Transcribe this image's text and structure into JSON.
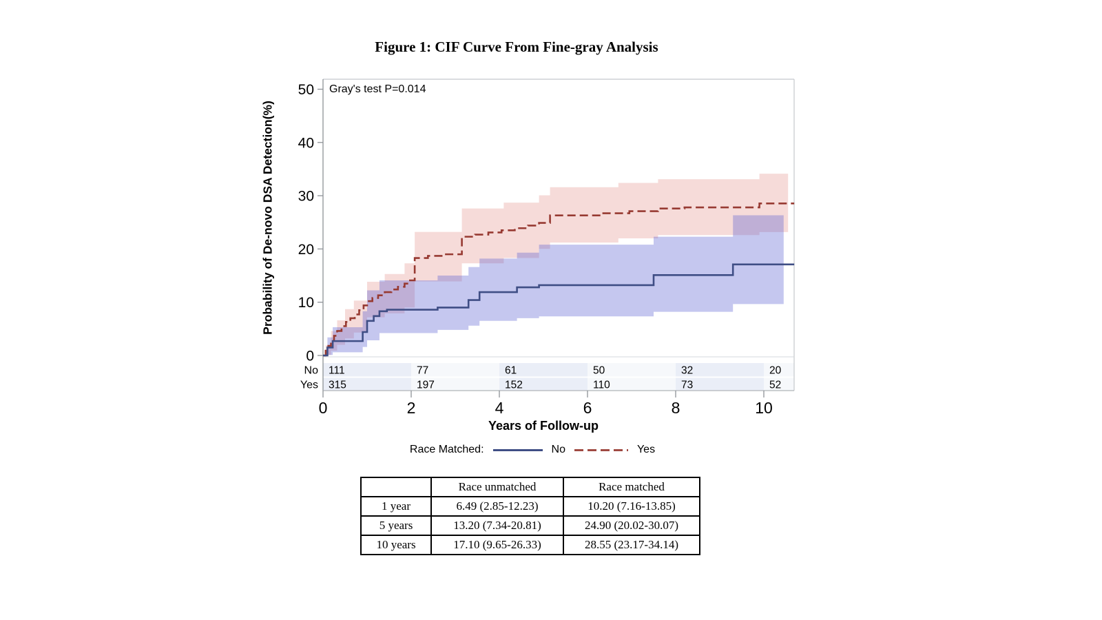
{
  "chart_data": {
    "type": "line",
    "subtype": "step-cumulative-incidence",
    "title": "Figure 1: CIF Curve From Fine-gray Analysis",
    "annotation": "Gray's test P=0.014",
    "xlabel": "Years of Follow-up",
    "ylabel": "Probability of De-novo DSA Detection(%)",
    "xlim": [
      0,
      10.69
    ],
    "ylim": [
      0,
      50
    ],
    "xticks": [
      0,
      2,
      4,
      6,
      8,
      10
    ],
    "yticks": [
      0,
      10,
      20,
      30,
      40,
      50
    ],
    "grid": false,
    "legend": {
      "label": "Race Matched:",
      "position": "bottom",
      "entries": [
        {
          "name": "No",
          "style": "solid",
          "color": "#3f4e85"
        },
        {
          "name": "Yes",
          "style": "dashed",
          "color": "#973a32"
        }
      ]
    },
    "series": [
      {
        "name": "No",
        "color": "#3f4e85",
        "line_style": "solid",
        "band_fill": "rgba(90,95,208,0.35)",
        "end_x": 10.69,
        "band_end_x": 10.45,
        "steps": [
          [
            0,
            0
          ],
          [
            0.1,
            1.5
          ],
          [
            0.22,
            2.7
          ],
          [
            0.9,
            4.4
          ],
          [
            1.0,
            6.49
          ],
          [
            1.15,
            7.4
          ],
          [
            1.28,
            8.3
          ],
          [
            1.45,
            8.6
          ],
          [
            2.6,
            9.0
          ],
          [
            3.3,
            10.4
          ],
          [
            3.55,
            11.9
          ],
          [
            4.4,
            12.8
          ],
          [
            4.9,
            13.2
          ],
          [
            7.5,
            15.1
          ],
          [
            9.3,
            17.1
          ]
        ],
        "band": [
          [
            0,
            0,
            0
          ],
          [
            0.1,
            0.1,
            3.4
          ],
          [
            0.22,
            0.6,
            5.3
          ],
          [
            0.9,
            1.6,
            8.3
          ],
          [
            1.0,
            2.85,
            12.23
          ],
          [
            1.28,
            4.2,
            14.1
          ],
          [
            2.6,
            4.8,
            15.0
          ],
          [
            3.3,
            5.6,
            16.6
          ],
          [
            3.55,
            6.5,
            18.2
          ],
          [
            4.4,
            7.0,
            19.3
          ],
          [
            4.9,
            7.34,
            20.81
          ],
          [
            7.5,
            8.2,
            22.3
          ],
          [
            9.3,
            9.65,
            26.33
          ]
        ]
      },
      {
        "name": "Yes",
        "color": "#973a32",
        "line_style": "dashed",
        "band_fill": "rgba(213,90,80,0.22)",
        "end_x": 10.69,
        "band_end_x": 10.55,
        "steps": [
          [
            0,
            0
          ],
          [
            0.06,
            0.9
          ],
          [
            0.12,
            1.8
          ],
          [
            0.18,
            2.8
          ],
          [
            0.25,
            3.7
          ],
          [
            0.32,
            4.6
          ],
          [
            0.42,
            5.5
          ],
          [
            0.52,
            6.3
          ],
          [
            0.62,
            7.0
          ],
          [
            0.72,
            7.7
          ],
          [
            0.82,
            8.5
          ],
          [
            0.92,
            9.4
          ],
          [
            1.0,
            10.2
          ],
          [
            1.12,
            10.8
          ],
          [
            1.25,
            11.3
          ],
          [
            1.4,
            11.9
          ],
          [
            1.55,
            12.4
          ],
          [
            1.7,
            12.9
          ],
          [
            1.85,
            13.5
          ],
          [
            1.95,
            14.1
          ],
          [
            2.08,
            18.3
          ],
          [
            2.38,
            18.7
          ],
          [
            2.75,
            19.0
          ],
          [
            3.15,
            22.3
          ],
          [
            3.45,
            22.7
          ],
          [
            3.75,
            23.1
          ],
          [
            4.05,
            23.5
          ],
          [
            4.35,
            23.9
          ],
          [
            4.65,
            24.4
          ],
          [
            4.9,
            24.9
          ],
          [
            5.15,
            26.3
          ],
          [
            6.3,
            26.7
          ],
          [
            6.95,
            27.1
          ],
          [
            7.6,
            27.6
          ],
          [
            8.2,
            27.8
          ],
          [
            9.9,
            28.55
          ]
        ],
        "band": [
          [
            0,
            0,
            0
          ],
          [
            0.06,
            0.1,
            1.9
          ],
          [
            0.18,
            0.9,
            4.6
          ],
          [
            0.32,
            2.0,
            6.6
          ],
          [
            0.5,
            3.2,
            8.7
          ],
          [
            0.7,
            4.3,
            10.3
          ],
          [
            1.0,
            7.16,
            13.85
          ],
          [
            1.4,
            7.9,
            15.3
          ],
          [
            1.85,
            9.0,
            17.3
          ],
          [
            2.08,
            13.9,
            23.2
          ],
          [
            3.15,
            17.3,
            27.6
          ],
          [
            4.1,
            18.3,
            28.7
          ],
          [
            4.9,
            20.02,
            30.07
          ],
          [
            5.15,
            21.2,
            31.6
          ],
          [
            6.7,
            22.0,
            32.4
          ],
          [
            7.6,
            22.6,
            33.1
          ],
          [
            9.9,
            23.17,
            34.14
          ]
        ]
      }
    ],
    "at_risk": {
      "row_labels": [
        "No",
        "Yes"
      ],
      "tick_years": [
        0,
        2,
        4,
        6,
        8,
        10
      ],
      "rows": [
        [
          111,
          77,
          61,
          50,
          32,
          20
        ],
        [
          315,
          197,
          152,
          110,
          73,
          52
        ]
      ]
    }
  },
  "summary_table": {
    "headers": [
      "",
      "Race unmatched",
      "Race matched"
    ],
    "rows": [
      [
        "1 year",
        "6.49 (2.85-12.23)",
        "10.20 (7.16-13.85)"
      ],
      [
        "5 years",
        "13.20 (7.34-20.81)",
        "24.90 (20.02-30.07)"
      ],
      [
        "10 years",
        "17.10 (9.65-26.33)",
        "28.55 (23.17-34.14)"
      ]
    ]
  }
}
